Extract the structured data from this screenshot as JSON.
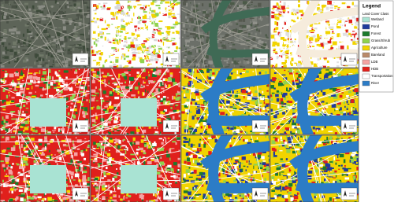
{
  "legend": {
    "title": "Legend",
    "subtitle": "Land Cover Class",
    "items": [
      {
        "name": "Wetland",
        "color": "#a9e3d3"
      },
      {
        "name": "Pond",
        "color": "#1f3a9c"
      },
      {
        "name": "Forest",
        "color": "#1b7a2c"
      },
      {
        "name": "Grass/Shrub",
        "color": "#8fd24f"
      },
      {
        "name": "Agriculture",
        "color": "#f1d400"
      },
      {
        "name": "Bareland",
        "color": "#b98a6a"
      },
      {
        "name": "LDB",
        "color": "#f5a3a3"
      },
      {
        "name": "HDB",
        "color": "#e0201c"
      },
      {
        "name": "Transportation",
        "color": "#ffffff"
      },
      {
        "name": "River",
        "color": "#2c7cc6"
      }
    ]
  }
}
